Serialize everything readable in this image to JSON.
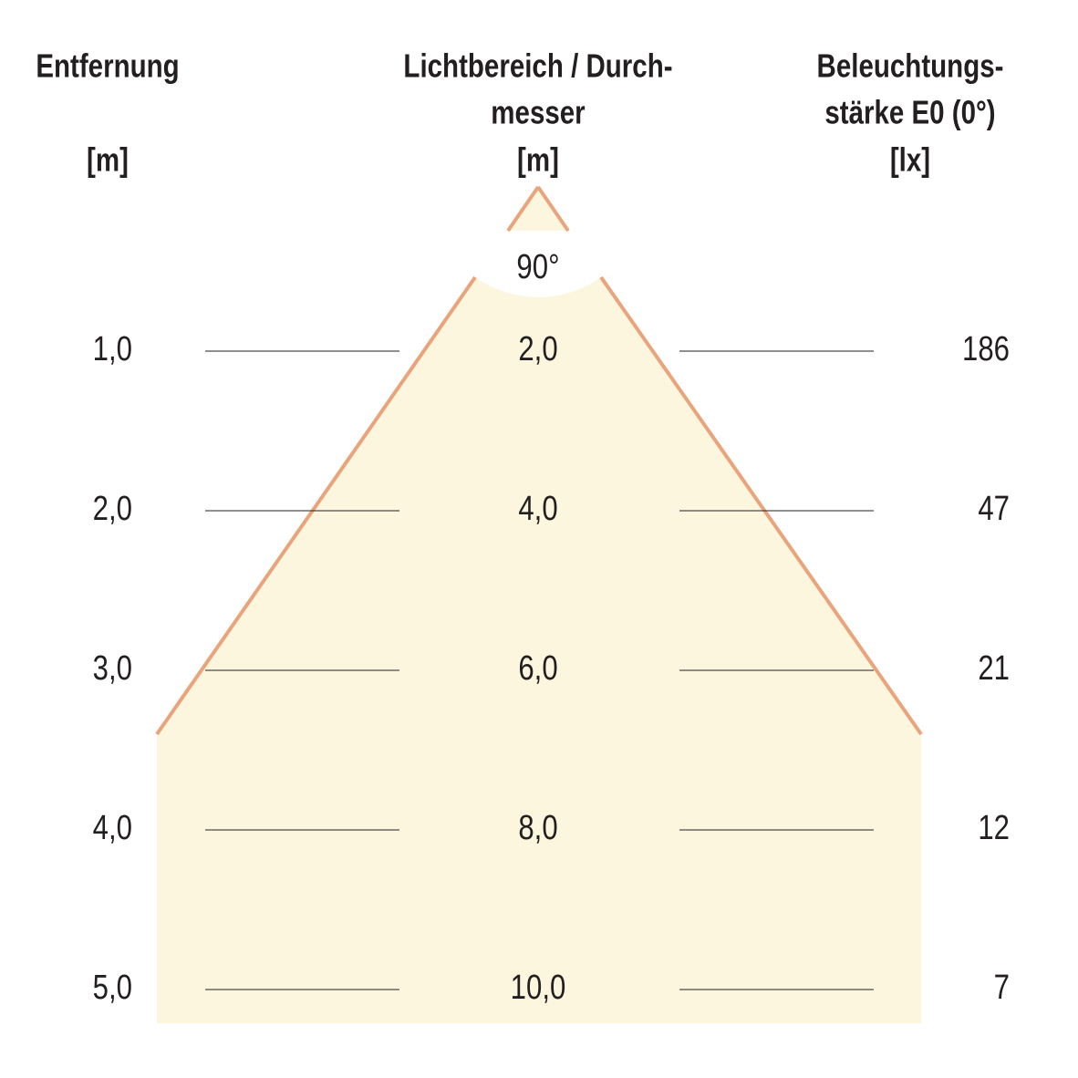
{
  "header": {
    "columns": [
      {
        "lines": [
          "Entfernung"
        ],
        "unit": "[m]"
      },
      {
        "lines": [
          "Lichtbereich / Durch-",
          "messer"
        ],
        "unit": "[m]"
      },
      {
        "lines": [
          "Beleuchtungs-",
          "stärke E0 (0°)"
        ],
        "unit": "[lx]"
      }
    ]
  },
  "angle": "90°",
  "rows": [
    [
      "1,0",
      "2,0",
      "186"
    ],
    [
      "2,0",
      "4,0",
      "47"
    ],
    [
      "3,0",
      "6,0",
      "21"
    ],
    [
      "4,0",
      "8,0",
      "12"
    ],
    [
      "5,0",
      "10,0",
      "7"
    ]
  ]
}
